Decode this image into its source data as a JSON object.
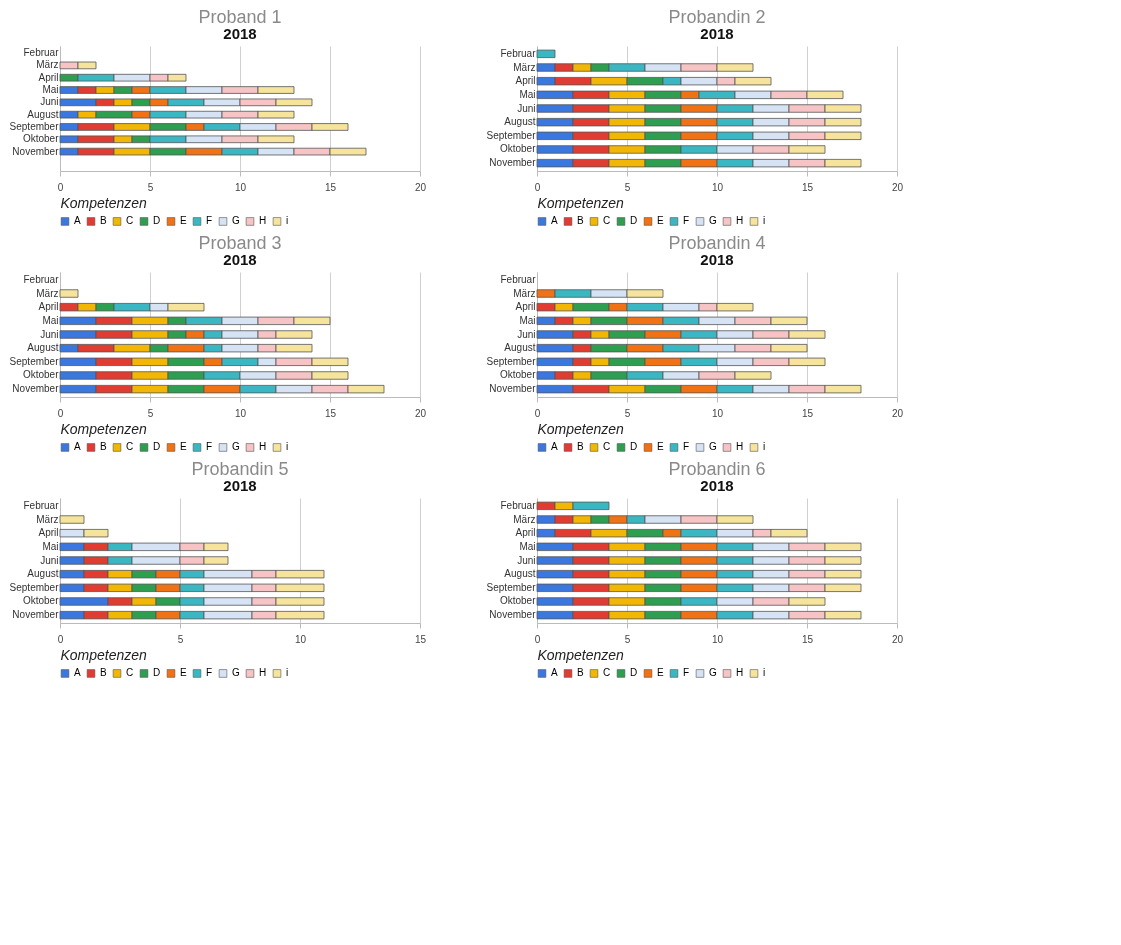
{
  "chart_data": [
    {
      "type": "bar",
      "orientation": "horizontal",
      "stacked": true,
      "title": "Proband 1",
      "subtitle": "2018",
      "xlabel": "Kompetenzen",
      "categories": [
        "Februar",
        "März",
        "April",
        "Mai",
        "Juni",
        "August",
        "September",
        "Oktober",
        "November",
        null
      ],
      "xlim": [
        0,
        20
      ],
      "xticks": [
        0,
        5,
        10,
        15,
        20
      ],
      "grid": "x",
      "legend": "bottom",
      "series": [
        {
          "name": "A",
          "color": "#3a78e0",
          "values": [
            0,
            0,
            0,
            1,
            2,
            1,
            1,
            1,
            1,
            0
          ]
        },
        {
          "name": "B",
          "color": "#e03c31",
          "values": [
            0,
            0,
            0,
            1,
            1,
            0,
            2,
            2,
            2,
            0
          ]
        },
        {
          "name": "C",
          "color": "#f2b705",
          "values": [
            0,
            0,
            0,
            1,
            1,
            1,
            2,
            1,
            2,
            0
          ]
        },
        {
          "name": "D",
          "color": "#2e9e50",
          "values": [
            0,
            0,
            1,
            1,
            1,
            2,
            2,
            1,
            2,
            0
          ]
        },
        {
          "name": "E",
          "color": "#f07215",
          "values": [
            0,
            0,
            0,
            1,
            1,
            1,
            1,
            0,
            2,
            0
          ]
        },
        {
          "name": "F",
          "color": "#3bb7c3",
          "values": [
            0,
            0,
            2,
            2,
            2,
            2,
            2,
            2,
            2,
            0
          ]
        },
        {
          "name": "G",
          "color": "#d5e3f5",
          "values": [
            0,
            0,
            2,
            2,
            2,
            2,
            2,
            2,
            2,
            0
          ]
        },
        {
          "name": "H",
          "color": "#f6c4c4",
          "values": [
            0,
            1,
            1,
            2,
            2,
            2,
            2,
            2,
            2,
            0
          ]
        },
        {
          "name": "i",
          "color": "#f6e39c",
          "values": [
            0,
            1,
            1,
            2,
            2,
            2,
            2,
            2,
            2,
            0
          ]
        }
      ]
    },
    {
      "type": "bar",
      "orientation": "horizontal",
      "stacked": true,
      "title": "Probandin 2",
      "subtitle": "2018",
      "xlabel": "Kompetenzen",
      "categories": [
        "Februar",
        "März",
        "April",
        "Mai",
        "Juni",
        "August",
        "September",
        "Oktober",
        "November"
      ],
      "xlim": [
        0,
        20
      ],
      "xticks": [
        0,
        5,
        10,
        15,
        20
      ],
      "grid": "x",
      "legend": "bottom",
      "series": [
        {
          "name": "A",
          "color": "#3a78e0",
          "values": [
            0,
            1,
            1,
            2,
            2,
            2,
            2,
            2,
            2
          ]
        },
        {
          "name": "B",
          "color": "#e03c31",
          "values": [
            0,
            1,
            2,
            2,
            2,
            2,
            2,
            2,
            2
          ]
        },
        {
          "name": "C",
          "color": "#f2b705",
          "values": [
            0,
            1,
            2,
            2,
            2,
            2,
            2,
            2,
            2
          ]
        },
        {
          "name": "D",
          "color": "#2e9e50",
          "values": [
            0,
            1,
            2,
            2,
            2,
            2,
            2,
            2,
            2
          ]
        },
        {
          "name": "E",
          "color": "#f07215",
          "values": [
            0,
            0,
            0,
            1,
            2,
            2,
            2,
            0,
            2
          ]
        },
        {
          "name": "F",
          "color": "#3bb7c3",
          "values": [
            1,
            2,
            1,
            2,
            2,
            2,
            2,
            2,
            2
          ]
        },
        {
          "name": "G",
          "color": "#d5e3f5",
          "values": [
            0,
            2,
            2,
            2,
            2,
            2,
            2,
            2,
            2
          ]
        },
        {
          "name": "H",
          "color": "#f6c4c4",
          "values": [
            0,
            2,
            1,
            2,
            2,
            2,
            2,
            2,
            2
          ]
        },
        {
          "name": "i",
          "color": "#f6e39c",
          "values": [
            0,
            2,
            2,
            2,
            2,
            2,
            2,
            2,
            2
          ]
        }
      ]
    },
    {
      "type": "bar",
      "orientation": "horizontal",
      "stacked": true,
      "title": "Proband 3",
      "subtitle": "2018",
      "xlabel": "Kompetenzen",
      "categories": [
        "Februar",
        "März",
        "April",
        "Mai",
        "Juni",
        "August",
        "September",
        "Oktober",
        "November"
      ],
      "xlim": [
        0,
        20
      ],
      "xticks": [
        0,
        5,
        10,
        15,
        20
      ],
      "grid": "x",
      "legend": "bottom",
      "series": [
        {
          "name": "A",
          "color": "#3a78e0",
          "values": [
            0,
            0,
            0,
            2,
            2,
            1,
            2,
            2,
            2
          ]
        },
        {
          "name": "B",
          "color": "#e03c31",
          "values": [
            0,
            0,
            1,
            2,
            2,
            2,
            2,
            2,
            2
          ]
        },
        {
          "name": "C",
          "color": "#f2b705",
          "values": [
            0,
            0,
            1,
            2,
            2,
            2,
            2,
            2,
            2
          ]
        },
        {
          "name": "D",
          "color": "#2e9e50",
          "values": [
            0,
            0,
            1,
            1,
            1,
            1,
            2,
            2,
            2
          ]
        },
        {
          "name": "E",
          "color": "#f07215",
          "values": [
            0,
            0,
            0,
            0,
            1,
            2,
            1,
            0,
            2
          ]
        },
        {
          "name": "F",
          "color": "#3bb7c3",
          "values": [
            0,
            0,
            2,
            2,
            1,
            1,
            2,
            2,
            2
          ]
        },
        {
          "name": "G",
          "color": "#d5e3f5",
          "values": [
            0,
            0,
            1,
            2,
            2,
            2,
            1,
            2,
            2
          ]
        },
        {
          "name": "H",
          "color": "#f6c4c4",
          "values": [
            0,
            0,
            0,
            2,
            1,
            1,
            2,
            2,
            2
          ]
        },
        {
          "name": "i",
          "color": "#f6e39c",
          "values": [
            0,
            1,
            2,
            2,
            2,
            2,
            2,
            2,
            2
          ]
        }
      ]
    },
    {
      "type": "bar",
      "orientation": "horizontal",
      "stacked": true,
      "title": "Probandin 4",
      "subtitle": "2018",
      "xlabel": "Kompetenzen",
      "categories": [
        "Februar",
        "März",
        "April",
        "Mai",
        "Juni",
        "August",
        "September",
        "Oktober",
        "November"
      ],
      "xlim": [
        0,
        20
      ],
      "xticks": [
        0,
        5,
        10,
        15,
        20
      ],
      "grid": "x",
      "legend": "bottom",
      "series": [
        {
          "name": "A",
          "color": "#3a78e0",
          "values": [
            0,
            0,
            0,
            1,
            2,
            2,
            2,
            1,
            2
          ]
        },
        {
          "name": "B",
          "color": "#e03c31",
          "values": [
            0,
            0,
            1,
            1,
            1,
            1,
            1,
            1,
            2
          ]
        },
        {
          "name": "C",
          "color": "#f2b705",
          "values": [
            0,
            0,
            1,
            1,
            1,
            0,
            1,
            1,
            2
          ]
        },
        {
          "name": "D",
          "color": "#2e9e50",
          "values": [
            0,
            0,
            2,
            2,
            2,
            2,
            2,
            2,
            2
          ]
        },
        {
          "name": "E",
          "color": "#f07215",
          "values": [
            0,
            1,
            1,
            2,
            2,
            2,
            2,
            0,
            2
          ]
        },
        {
          "name": "F",
          "color": "#3bb7c3",
          "values": [
            0,
            2,
            2,
            2,
            2,
            2,
            2,
            2,
            2
          ]
        },
        {
          "name": "G",
          "color": "#d5e3f5",
          "values": [
            0,
            2,
            2,
            2,
            2,
            2,
            2,
            2,
            2
          ]
        },
        {
          "name": "H",
          "color": "#f6c4c4",
          "values": [
            0,
            0,
            1,
            2,
            2,
            2,
            2,
            2,
            2
          ]
        },
        {
          "name": "i",
          "color": "#f6e39c",
          "values": [
            0,
            2,
            2,
            2,
            2,
            2,
            2,
            2,
            2
          ]
        }
      ]
    },
    {
      "type": "bar",
      "orientation": "horizontal",
      "stacked": true,
      "title": "Probandin 5",
      "subtitle": "2018",
      "xlabel": "Kompetenzen",
      "categories": [
        "Februar",
        "März",
        "April",
        "Mai",
        "Juni",
        "August",
        "September",
        "Oktober",
        "November"
      ],
      "xlim": [
        0,
        15
      ],
      "xticks": [
        0,
        5,
        10,
        15
      ],
      "grid": "x",
      "legend": "bottom",
      "series": [
        {
          "name": "A",
          "color": "#3a78e0",
          "values": [
            0,
            0,
            0,
            1,
            1,
            1,
            1,
            2,
            1
          ]
        },
        {
          "name": "B",
          "color": "#e03c31",
          "values": [
            0,
            0,
            0,
            1,
            1,
            1,
            1,
            1,
            1
          ]
        },
        {
          "name": "C",
          "color": "#f2b705",
          "values": [
            0,
            0,
            0,
            0,
            0,
            1,
            1,
            1,
            1
          ]
        },
        {
          "name": "D",
          "color": "#2e9e50",
          "values": [
            0,
            0,
            0,
            0,
            0,
            1,
            1,
            1,
            1
          ]
        },
        {
          "name": "E",
          "color": "#f07215",
          "values": [
            0,
            0,
            0,
            0,
            0,
            1,
            1,
            0,
            1
          ]
        },
        {
          "name": "F",
          "color": "#3bb7c3",
          "values": [
            0,
            0,
            0,
            1,
            1,
            1,
            1,
            1,
            1
          ]
        },
        {
          "name": "G",
          "color": "#d5e3f5",
          "values": [
            0,
            0,
            1,
            2,
            2,
            2,
            2,
            2,
            2
          ]
        },
        {
          "name": "H",
          "color": "#f6c4c4",
          "values": [
            0,
            0,
            0,
            1,
            1,
            1,
            1,
            1,
            1
          ]
        },
        {
          "name": "i",
          "color": "#f6e39c",
          "values": [
            0,
            1,
            1,
            1,
            1,
            2,
            2,
            2,
            2
          ]
        }
      ]
    },
    {
      "type": "bar",
      "orientation": "horizontal",
      "stacked": true,
      "title": "Probandin 6",
      "subtitle": "2018",
      "xlabel": "Kompetenzen",
      "categories": [
        "Februar",
        "März",
        "April",
        "Mai",
        "Juni",
        "August",
        "September",
        "Oktober",
        "November"
      ],
      "xlim": [
        0,
        20
      ],
      "xticks": [
        0,
        5,
        10,
        15,
        20
      ],
      "grid": "x",
      "legend": "bottom",
      "series": [
        {
          "name": "A",
          "color": "#3a78e0",
          "values": [
            0,
            1,
            1,
            2,
            2,
            2,
            2,
            2,
            2
          ]
        },
        {
          "name": "B",
          "color": "#e03c31",
          "values": [
            1,
            1,
            2,
            2,
            2,
            2,
            2,
            2,
            2
          ]
        },
        {
          "name": "C",
          "color": "#f2b705",
          "values": [
            1,
            1,
            2,
            2,
            2,
            2,
            2,
            2,
            2
          ]
        },
        {
          "name": "D",
          "color": "#2e9e50",
          "values": [
            0,
            1,
            2,
            2,
            2,
            2,
            2,
            2,
            2
          ]
        },
        {
          "name": "E",
          "color": "#f07215",
          "values": [
            0,
            1,
            1,
            2,
            2,
            2,
            2,
            0,
            2
          ]
        },
        {
          "name": "F",
          "color": "#3bb7c3",
          "values": [
            2,
            1,
            2,
            2,
            2,
            2,
            2,
            2,
            2
          ]
        },
        {
          "name": "G",
          "color": "#d5e3f5",
          "values": [
            0,
            2,
            2,
            2,
            2,
            2,
            2,
            2,
            2
          ]
        },
        {
          "name": "H",
          "color": "#f6c4c4",
          "values": [
            0,
            2,
            1,
            2,
            2,
            2,
            2,
            2,
            2
          ]
        },
        {
          "name": "i",
          "color": "#f6e39c",
          "values": [
            0,
            2,
            2,
            2,
            2,
            2,
            2,
            2,
            2
          ]
        }
      ]
    }
  ]
}
